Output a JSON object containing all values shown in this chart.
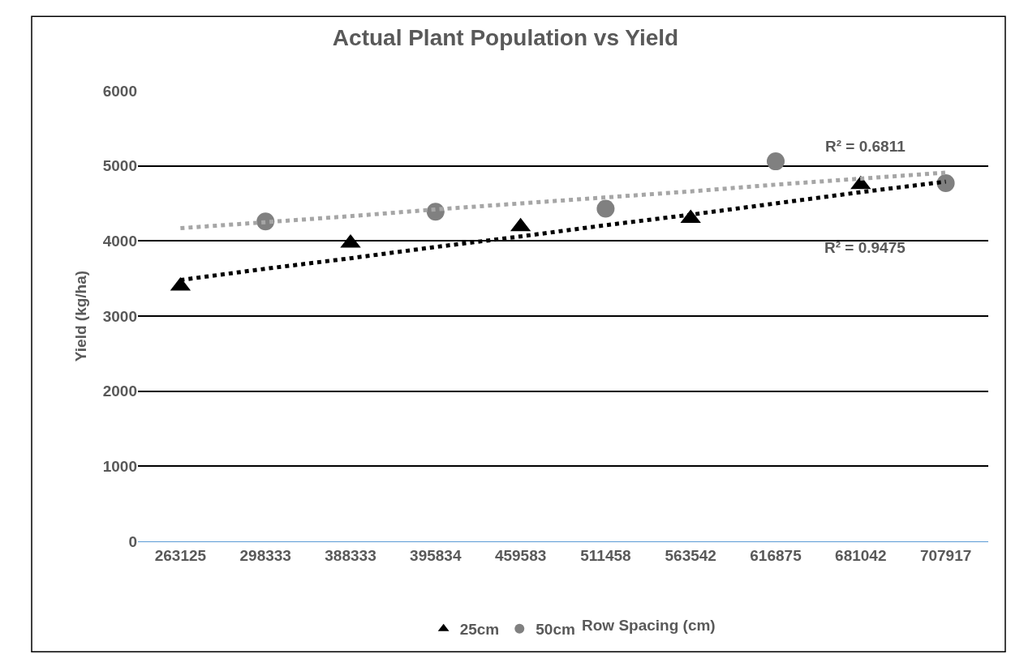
{
  "chart_data": {
    "type": "scatter",
    "title": "Actual Plant Population vs Yield",
    "ylabel": "Yield (kg/ha)",
    "legend_title": "Row Spacing (cm)",
    "categories": [
      "263125",
      "298333",
      "388333",
      "395834",
      "459583",
      "511458",
      "563542",
      "616875",
      "681042",
      "707917"
    ],
    "series": [
      {
        "name": "25cm",
        "color": "#000000",
        "marker": "triangle",
        "values": [
          3400,
          null,
          3970,
          null,
          4190,
          null,
          4300,
          null,
          4750,
          null
        ]
      },
      {
        "name": "50cm",
        "color": "#808080",
        "marker": "circle",
        "values": [
          null,
          4260,
          null,
          4390,
          null,
          4430,
          null,
          5060,
          null,
          4770
        ]
      },
      {
        "type": "line",
        "color": "#000000",
        "line_style": "dotted",
        "values": [
          3480,
          3630,
          3770,
          3920,
          4060,
          4210,
          4350,
          4500,
          4650,
          4790
        ]
      },
      {
        "type": "line",
        "color": "#a6a6a6",
        "line_style": "dotted",
        "values": [
          4170,
          4250,
          4330,
          4420,
          4500,
          4580,
          4660,
          4750,
          4830,
          4910
        ]
      }
    ],
    "annotations": [
      "R² = 0.6811",
      "R² = 0.9475"
    ],
    "ylim": [
      0,
      6000
    ],
    "yticks": [
      0,
      1000,
      2000,
      3000,
      4000,
      5000,
      6000
    ],
    "grid": "y",
    "legend": "bottom"
  }
}
